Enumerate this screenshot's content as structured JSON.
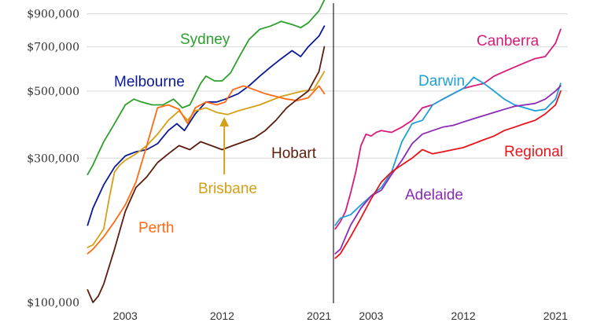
{
  "chart_data": [
    {
      "type": "line",
      "panel": "left",
      "y_scale": "log",
      "ylim": [
        100000,
        1000000
      ],
      "xlim": [
        1999.4,
        2022.2
      ],
      "y_ticks": [
        {
          "value": 100000,
          "label": "$100,000"
        },
        {
          "value": 300000,
          "label": "$300,000"
        },
        {
          "value": 500000,
          "label": "$500,000"
        },
        {
          "value": 700000,
          "label": "$700,000"
        },
        {
          "value": 900000,
          "label": "$900,000"
        }
      ],
      "x_ticks": [
        {
          "value": 2003,
          "label": "2003"
        },
        {
          "value": 2012,
          "label": "2012"
        },
        {
          "value": 2021,
          "label": "2021"
        }
      ],
      "grid": "horizontal",
      "series": [
        {
          "name": "Sydney",
          "color": "#2ca02c",
          "x": [
            1999.5,
            2000,
            2001,
            2002,
            2003,
            2003.8,
            2004.5,
            2005.5,
            2006.5,
            2007.5,
            2008.3,
            2009,
            2010,
            2010.5,
            2011.3,
            2012,
            2012.8,
            2013.5,
            2014.5,
            2015.5,
            2016.5,
            2017.5,
            2018.5,
            2019.3,
            2020,
            2021,
            2021.5
          ],
          "y": [
            265000,
            285000,
            340000,
            390000,
            450000,
            470000,
            460000,
            450000,
            450000,
            470000,
            440000,
            450000,
            530000,
            560000,
            540000,
            540000,
            575000,
            640000,
            740000,
            800000,
            820000,
            850000,
            830000,
            810000,
            840000,
            920000,
            1000000
          ]
        },
        {
          "name": "Melbourne",
          "color": "#0a1a96",
          "x": [
            1999.5,
            2000,
            2001,
            2002,
            2003,
            2004,
            2005,
            2006,
            2007,
            2007.8,
            2008.5,
            2009.5,
            2010.5,
            2011.5,
            2012.3,
            2013.5,
            2014.5,
            2015.5,
            2016.5,
            2017.5,
            2018.5,
            2019.3,
            2020,
            2021,
            2021.5
          ],
          "y": [
            180000,
            205000,
            245000,
            280000,
            305000,
            315000,
            320000,
            335000,
            370000,
            390000,
            370000,
            420000,
            460000,
            460000,
            470000,
            490000,
            520000,
            560000,
            600000,
            640000,
            680000,
            650000,
            700000,
            760000,
            820000
          ]
        },
        {
          "name": "Brisbane",
          "color": "#d4a017",
          "x": [
            1999.5,
            2000,
            2001,
            2001.5,
            2002,
            2002.5,
            2003,
            2004,
            2005,
            2006,
            2007,
            2008,
            2008.8,
            2009.5,
            2010.5,
            2011.5,
            2012.5,
            2013.5,
            2014.5,
            2015.5,
            2016.5,
            2017.5,
            2018.5,
            2019.5,
            2020.5,
            2021.5
          ],
          "y": [
            152000,
            155000,
            175000,
            220000,
            270000,
            285000,
            295000,
            310000,
            330000,
            360000,
            400000,
            430000,
            400000,
            430000,
            440000,
            425000,
            418000,
            430000,
            440000,
            450000,
            465000,
            480000,
            490000,
            500000,
            505000,
            580000
          ]
        },
        {
          "name": "Perth",
          "color": "#ff6a14",
          "x": [
            1999.5,
            2000,
            2001,
            2002,
            2003,
            2004,
            2005,
            2006,
            2007,
            2008,
            2008.8,
            2009.5,
            2010.5,
            2011.5,
            2012.3,
            2013,
            2014,
            2015,
            2016,
            2017,
            2018,
            2019,
            2020,
            2021,
            2021.5
          ],
          "y": [
            145000,
            150000,
            165000,
            185000,
            210000,
            250000,
            330000,
            440000,
            450000,
            435000,
            390000,
            440000,
            460000,
            450000,
            460000,
            505000,
            520000,
            505000,
            490000,
            480000,
            470000,
            465000,
            475000,
            520000,
            490000
          ]
        },
        {
          "name": "Hobart",
          "color": "#5c1f0f",
          "x": [
            1999.5,
            2000,
            2000.5,
            2001,
            2002,
            2003,
            2004,
            2005,
            2006,
            2007,
            2008,
            2009,
            2010,
            2011,
            2012,
            2013,
            2014,
            2015,
            2016,
            2017,
            2018,
            2019,
            2020,
            2021,
            2021.5
          ],
          "y": [
            110000,
            100000,
            105000,
            115000,
            150000,
            200000,
            240000,
            260000,
            290000,
            310000,
            330000,
            320000,
            340000,
            330000,
            320000,
            330000,
            340000,
            350000,
            370000,
            400000,
            440000,
            470000,
            500000,
            580000,
            700000
          ]
        }
      ],
      "labels": [
        {
          "series": "Sydney",
          "text": "Sydney"
        },
        {
          "series": "Melbourne",
          "text": "Melbourne"
        },
        {
          "series": "Brisbane",
          "text": "Brisbane"
        },
        {
          "series": "Perth",
          "text": "Perth"
        },
        {
          "series": "Hobart",
          "text": "Hobart"
        }
      ],
      "annotations": [
        {
          "type": "arrow",
          "color": "#d4a017",
          "points_to_series": "Brisbane",
          "at_x": 2012.2
        }
      ]
    },
    {
      "type": "line",
      "panel": "right",
      "y_scale": "log",
      "ylim": [
        100000,
        1000000
      ],
      "xlim": [
        1999.4,
        2022.2
      ],
      "x_ticks": [
        {
          "value": 2003,
          "label": "2003"
        },
        {
          "value": 2012,
          "label": "2012"
        },
        {
          "value": 2021,
          "label": "2021"
        }
      ],
      "grid": "horizontal",
      "series": [
        {
          "name": "Canberra",
          "color": "#d81b7a",
          "x": [
            1999.5,
            2000,
            2000.5,
            2001,
            2001.5,
            2002,
            2002.5,
            2003,
            2003.5,
            2004,
            2005,
            2006,
            2007,
            2008,
            2009,
            2010,
            2011,
            2012,
            2013,
            2014,
            2015,
            2016,
            2017,
            2018,
            2019,
            2020,
            2021,
            2021.5
          ],
          "y": [
            175000,
            185000,
            200000,
            230000,
            270000,
            330000,
            360000,
            355000,
            365000,
            370000,
            365000,
            380000,
            400000,
            440000,
            450000,
            470000,
            490000,
            510000,
            520000,
            530000,
            560000,
            580000,
            600000,
            620000,
            640000,
            650000,
            720000,
            800000
          ]
        },
        {
          "name": "Darwin",
          "color": "#1e9fd8",
          "x": [
            1999.5,
            2000,
            2001,
            2002,
            2003,
            2004,
            2005,
            2006,
            2007,
            2008,
            2009,
            2010,
            2011,
            2012,
            2012.5,
            2013,
            2014,
            2015,
            2016,
            2017,
            2018,
            2019,
            2020,
            2021,
            2021.5
          ],
          "y": [
            180000,
            190000,
            195000,
            210000,
            225000,
            240000,
            270000,
            340000,
            390000,
            400000,
            450000,
            470000,
            490000,
            510000,
            530000,
            555000,
            530000,
            500000,
            470000,
            450000,
            440000,
            430000,
            435000,
            470000,
            530000
          ]
        },
        {
          "name": "Adelaide",
          "color": "#8a2bb5",
          "x": [
            1999.5,
            2000,
            2001,
            2002,
            2003,
            2004,
            2005,
            2006,
            2007,
            2008,
            2009,
            2010,
            2011,
            2012,
            2013,
            2014,
            2015,
            2016,
            2017,
            2018,
            2019,
            2020,
            2021,
            2021.5
          ],
          "y": [
            145000,
            150000,
            180000,
            205000,
            225000,
            235000,
            265000,
            295000,
            335000,
            360000,
            370000,
            380000,
            385000,
            395000,
            405000,
            415000,
            425000,
            435000,
            445000,
            450000,
            455000,
            470000,
            500000,
            520000
          ]
        },
        {
          "name": "Regional",
          "color": "#e8141c",
          "x": [
            1999.5,
            2000,
            2001,
            2002,
            2003,
            2004,
            2005,
            2006,
            2007,
            2008,
            2009,
            2010,
            2011,
            2012,
            2013,
            2014,
            2015,
            2016,
            2017,
            2018,
            2019,
            2020,
            2021,
            2021.5
          ],
          "y": [
            140000,
            145000,
            165000,
            190000,
            220000,
            250000,
            270000,
            285000,
            300000,
            320000,
            310000,
            315000,
            320000,
            325000,
            335000,
            345000,
            355000,
            370000,
            380000,
            390000,
            400000,
            420000,
            450000,
            500000
          ]
        }
      ],
      "labels": [
        {
          "series": "Canberra",
          "text": "Canberra"
        },
        {
          "series": "Darwin",
          "text": "Darwin"
        },
        {
          "series": "Adelaide",
          "text": "Adelaide"
        },
        {
          "series": "Regional",
          "text": "Regional"
        }
      ]
    }
  ]
}
